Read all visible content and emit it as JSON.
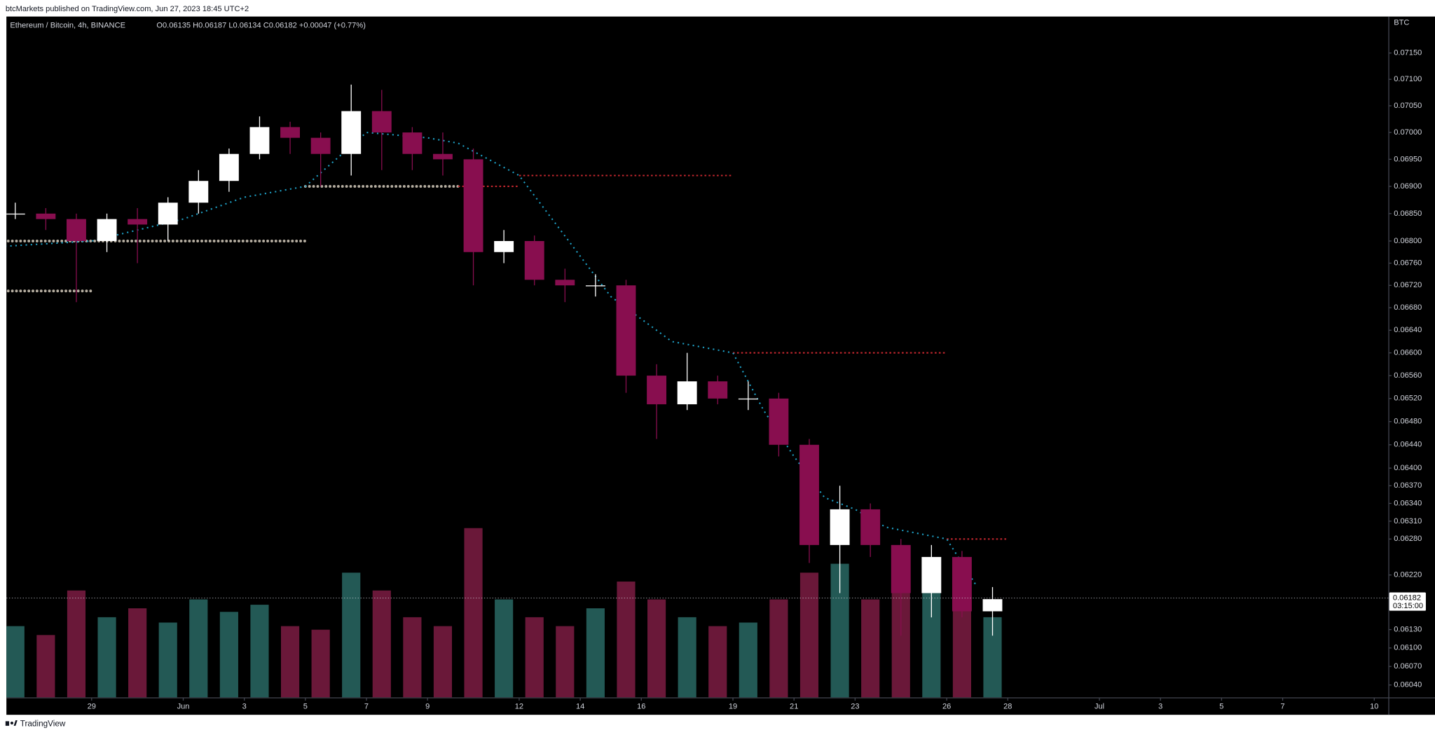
{
  "header": {
    "published": "btcMarkets published on TradingView.com, Jun 27, 2023 18:45 UTC+2"
  },
  "footer": {
    "brand": "TradingView"
  },
  "chart_data": {
    "type": "candlestick",
    "title": "Ethereum / Bitcoin, 4h, BINANCE",
    "subtitle": "O0.06135 H0.06187 L0.06134 C0.06182 +0.00047 (+0.77%)",
    "currency": "BTC",
    "x": [
      "May 26",
      "May 27",
      "May 28",
      "May 29",
      "May 30",
      "May 31",
      "Jun 1",
      "Jun 2",
      "Jun 3",
      "Jun 4",
      "Jun 5",
      "Jun 6",
      "Jun 7",
      "Jun 8",
      "Jun 9",
      "Jun 10",
      "Jun 11",
      "Jun 12",
      "Jun 13",
      "Jun 14",
      "Jun 15",
      "Jun 16",
      "Jun 17",
      "Jun 18",
      "Jun 19",
      "Jun 20",
      "Jun 21",
      "Jun 22",
      "Jun 23",
      "Jun 24",
      "Jun 25",
      "Jun 26",
      "Jun 27"
    ],
    "open": [
      0.0685,
      0.0685,
      0.0684,
      0.068,
      0.0684,
      0.0683,
      0.0687,
      0.0691,
      0.0696,
      0.0701,
      0.0699,
      0.0696,
      0.0704,
      0.07,
      0.0696,
      0.0695,
      0.0678,
      0.068,
      0.0673,
      0.0672,
      0.0672,
      0.0656,
      0.0651,
      0.0655,
      0.0652,
      0.0652,
      0.0644,
      0.0627,
      0.0633,
      0.0627,
      0.0619,
      0.0625,
      0.0616
    ],
    "high": [
      0.0687,
      0.0686,
      0.0685,
      0.0685,
      0.0686,
      0.0688,
      0.0693,
      0.0697,
      0.0703,
      0.0702,
      0.07,
      0.0709,
      0.0708,
      0.0701,
      0.07,
      0.0697,
      0.0682,
      0.0681,
      0.0675,
      0.0674,
      0.0673,
      0.0658,
      0.066,
      0.0656,
      0.0655,
      0.0653,
      0.0645,
      0.0637,
      0.0634,
      0.0628,
      0.0627,
      0.0626,
      0.062
    ],
    "low": [
      0.0684,
      0.0682,
      0.0669,
      0.0678,
      0.0676,
      0.068,
      0.0685,
      0.0689,
      0.0695,
      0.0696,
      0.069,
      0.0692,
      0.0693,
      0.0693,
      0.0692,
      0.0672,
      0.0676,
      0.0672,
      0.0669,
      0.067,
      0.0653,
      0.0645,
      0.065,
      0.0651,
      0.065,
      0.0642,
      0.0624,
      0.0619,
      0.0625,
      0.0612,
      0.0615,
      0.0615,
      0.0612
    ],
    "close": [
      0.0685,
      0.0684,
      0.068,
      0.0684,
      0.0683,
      0.0687,
      0.0691,
      0.0696,
      0.0701,
      0.0699,
      0.0696,
      0.0704,
      0.07,
      0.0696,
      0.0695,
      0.0678,
      0.068,
      0.0673,
      0.0672,
      0.0672,
      0.0656,
      0.0651,
      0.0655,
      0.0652,
      0.0652,
      0.0644,
      0.0627,
      0.0633,
      0.0627,
      0.0619,
      0.0625,
      0.0616,
      0.0618
    ],
    "volume": [
      40,
      35,
      60,
      45,
      50,
      42,
      55,
      48,
      52,
      40,
      38,
      70,
      60,
      45,
      40,
      95,
      55,
      45,
      40,
      50,
      65,
      55,
      45,
      40,
      42,
      55,
      70,
      75,
      55,
      80,
      60,
      55,
      45
    ],
    "colors": {
      "up": "#ffffff",
      "down": "#880e4f",
      "volume_up": "#235955",
      "volume_down": "#6a1839"
    },
    "log": true,
    "ylim": [
      0.0602,
      0.0722
    ],
    "yticks": [
      {
        "value": 0.0604,
        "label": "0.06040"
      },
      {
        "value": 0.0607,
        "label": "0.06070"
      },
      {
        "value": 0.061,
        "label": "0.06100"
      },
      {
        "value": 0.0613,
        "label": "0.06130"
      },
      {
        "value": 0.0622,
        "label": "0.06220"
      },
      {
        "value": 0.0628,
        "label": "0.06280"
      },
      {
        "value": 0.0631,
        "label": "0.06310"
      },
      {
        "value": 0.0634,
        "label": "0.06340"
      },
      {
        "value": 0.0637,
        "label": "0.06370"
      },
      {
        "value": 0.064,
        "label": "0.06400"
      },
      {
        "value": 0.0644,
        "label": "0.06440"
      },
      {
        "value": 0.0648,
        "label": "0.06480"
      },
      {
        "value": 0.0652,
        "label": "0.06520"
      },
      {
        "value": 0.0656,
        "label": "0.06560"
      },
      {
        "value": 0.066,
        "label": "0.06600"
      },
      {
        "value": 0.0664,
        "label": "0.06640"
      },
      {
        "value": 0.0668,
        "label": "0.06680"
      },
      {
        "value": 0.0672,
        "label": "0.06720"
      },
      {
        "value": 0.0676,
        "label": "0.06760"
      },
      {
        "value": 0.068,
        "label": "0.06800"
      },
      {
        "value": 0.0685,
        "label": "0.06850"
      },
      {
        "value": 0.069,
        "label": "0.06900"
      },
      {
        "value": 0.0695,
        "label": "0.06950"
      },
      {
        "value": 0.07,
        "label": "0.07000"
      },
      {
        "value": 0.0705,
        "label": "0.07050"
      },
      {
        "value": 0.071,
        "label": "0.07100"
      },
      {
        "value": 0.0715,
        "label": "0.07150"
      }
    ],
    "xlim": [
      "May 26",
      "Jul 11"
    ],
    "xticks": [
      {
        "value": "May 29",
        "label": "29"
      },
      {
        "value": "Jun 1",
        "label": "Jun"
      },
      {
        "value": "Jun 3",
        "label": "3"
      },
      {
        "value": "Jun 5",
        "label": "5"
      },
      {
        "value": "Jun 7",
        "label": "7"
      },
      {
        "value": "Jun 9",
        "label": "9"
      },
      {
        "value": "Jun 12",
        "label": "12"
      },
      {
        "value": "Jun 14",
        "label": "14"
      },
      {
        "value": "Jun 16",
        "label": "16"
      },
      {
        "value": "Jun 19",
        "label": "19"
      },
      {
        "value": "Jun 21",
        "label": "21"
      },
      {
        "value": "Jun 23",
        "label": "23"
      },
      {
        "value": "Jun 26",
        "label": "26"
      },
      {
        "value": "Jun 28",
        "label": "28"
      },
      {
        "value": "Jul 1",
        "label": "Jul"
      },
      {
        "value": "Jul 3",
        "label": "3"
      },
      {
        "value": "Jul 5",
        "label": "5"
      },
      {
        "value": "Jul 7",
        "label": "7"
      },
      {
        "value": "Jul 10",
        "label": "10"
      }
    ],
    "last_price": 0.06182,
    "countdown": "03:15:00",
    "levels": [
      {
        "value": 0.0671,
        "from": "May 26",
        "to": "May 29",
        "color": "#b5ada0"
      },
      {
        "value": 0.068,
        "from": "May 26",
        "to": "Jun 5",
        "color": "#b5ada0"
      },
      {
        "value": 0.069,
        "from": "Jun 5",
        "to": "Jun 10",
        "color": "#b5ada0"
      },
      {
        "value": 0.069,
        "from": "Jun 10",
        "to": "Jun 12",
        "color": "#c0262d"
      },
      {
        "value": 0.0692,
        "from": "Jun 12",
        "to": "Jun 19",
        "color": "#c0262d"
      },
      {
        "value": 0.066,
        "from": "Jun 19",
        "to": "Jun 26",
        "color": "#c0262d"
      },
      {
        "value": 0.0628,
        "from": "Jun 26",
        "to": "Jun 28",
        "color": "#c0262d"
      }
    ],
    "trail": {
      "color": "#1e9fc4",
      "x": [
        "May 26",
        "May 29",
        "Jun 1",
        "Jun 3",
        "Jun 5",
        "Jun 7",
        "Jun 9",
        "Jun 10",
        "Jun 12",
        "Jun 15",
        "Jun 17",
        "Jun 19",
        "Jun 20",
        "Jun 21",
        "Jun 22",
        "Jun 23",
        "Jun 24",
        "Jun 26",
        "Jun 27"
      ],
      "values": [
        0.0679,
        0.068,
        0.0684,
        0.0688,
        0.069,
        0.07,
        0.0699,
        0.0698,
        0.0692,
        0.067,
        0.0662,
        0.066,
        0.065,
        0.0642,
        0.0635,
        0.0633,
        0.063,
        0.0628,
        0.062
      ]
    }
  }
}
